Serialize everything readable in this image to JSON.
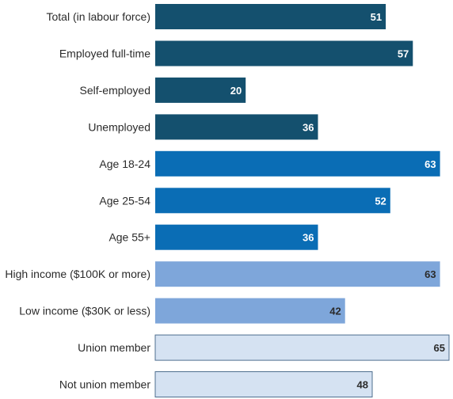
{
  "chart_data": {
    "type": "bar",
    "orientation": "horizontal",
    "categories": [
      "Total (in labour force)",
      "Employed full-time",
      "Self-employed",
      "Unemployed",
      "Age 18-24",
      "Age 25-54",
      "Age 55+",
      "High income ($100K or more)",
      "Low income ($30K or less)",
      "Union member",
      "Not union member"
    ],
    "values": [
      51,
      57,
      20,
      36,
      63,
      52,
      36,
      63,
      42,
      65,
      48
    ],
    "value_labels": [
      "51",
      "57",
      "20",
      "36",
      "63",
      "52",
      "36",
      "63",
      "42",
      "65",
      "48"
    ],
    "groups": [
      "employment",
      "employment",
      "employment",
      "employment",
      "age",
      "age",
      "age",
      "income",
      "income",
      "union",
      "union"
    ],
    "xlim": [
      0,
      65
    ],
    "grid": false,
    "legend": "none",
    "colors": {
      "employment": "#14506e",
      "age": "#0a6db5",
      "income": "#7ea6da",
      "union": "#d5e2f2",
      "bar_border": "#4f6f8f",
      "label_on_dark": "#ffffff",
      "label_on_light": "#2b2b2b"
    }
  }
}
